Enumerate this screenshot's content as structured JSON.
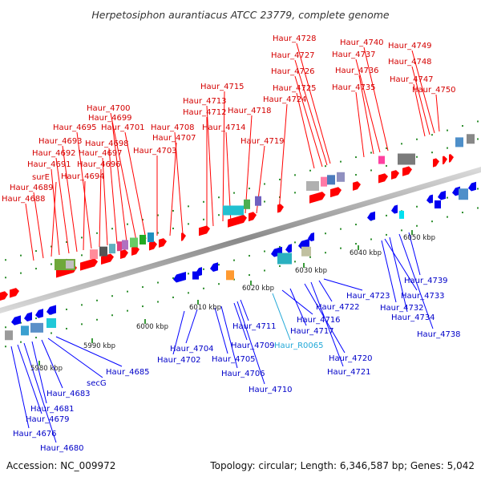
{
  "title": "Herpetosiphon aurantiacus ATCC 23779, complete genome",
  "footer": {
    "accession": "Accession: NC_009972",
    "topology": "Topology: circular; Length: 6,346,587 bp; Genes: 5,042"
  },
  "colors": {
    "top_label": "#d40000",
    "bottom_label": "#0000c8",
    "rna_label": "#22a8d8",
    "axis": "#999999"
  },
  "ticks": [
    {
      "text": "5980 kbp"
    },
    {
      "text": "5990 kbp"
    },
    {
      "text": "6000 kbp"
    },
    {
      "text": "6010 kbp"
    },
    {
      "text": "6020 kbp"
    },
    {
      "text": "6030 kbp"
    },
    {
      "text": "6040 kbp"
    },
    {
      "text": "6050 kbp"
    }
  ],
  "top_labels": [
    {
      "text": "Haur_4688"
    },
    {
      "text": "Haur_4689"
    },
    {
      "text": "surE"
    },
    {
      "text": "Haur_4691"
    },
    {
      "text": "Haur_4692"
    },
    {
      "text": "Haur_4693"
    },
    {
      "text": "Haur_4694"
    },
    {
      "text": "Haur_4695"
    },
    {
      "text": "Haur_4696"
    },
    {
      "text": "Haur_4697"
    },
    {
      "text": "Haur_4698"
    },
    {
      "text": "Haur_4699"
    },
    {
      "text": "Haur_4700"
    },
    {
      "text": "Haur_4701"
    },
    {
      "text": "Haur_4703"
    },
    {
      "text": "Haur_4707"
    },
    {
      "text": "Haur_4708"
    },
    {
      "text": "Haur_4712"
    },
    {
      "text": "Haur_4713"
    },
    {
      "text": "Haur_4714"
    },
    {
      "text": "Haur_4715"
    },
    {
      "text": "Haur_4718"
    },
    {
      "text": "Haur_4719"
    },
    {
      "text": "Haur_4724"
    },
    {
      "text": "Haur_4725"
    },
    {
      "text": "Haur_4726"
    },
    {
      "text": "Haur_4727"
    },
    {
      "text": "Haur_4728"
    },
    {
      "text": "Haur_4735"
    },
    {
      "text": "Haur_4736"
    },
    {
      "text": "Haur_4737"
    },
    {
      "text": "Haur_4740"
    },
    {
      "text": "Haur_4747"
    },
    {
      "text": "Haur_4748"
    },
    {
      "text": "Haur_4749"
    },
    {
      "text": "Haur_4750"
    }
  ],
  "bottom_labels": [
    {
      "text": "Haur_4676"
    },
    {
      "text": "Haur_4679"
    },
    {
      "text": "Haur_4680"
    },
    {
      "text": "Haur_4681"
    },
    {
      "text": "Haur_4683"
    },
    {
      "text": "secG"
    },
    {
      "text": "Haur_4685"
    },
    {
      "text": "Haur_4702"
    },
    {
      "text": "Haur_4704"
    },
    {
      "text": "Haur_4705"
    },
    {
      "text": "Haur_4706"
    },
    {
      "text": "Haur_4709"
    },
    {
      "text": "Haur_4710"
    },
    {
      "text": "Haur_4711"
    },
    {
      "text": "Haur_R0065"
    },
    {
      "text": "Haur_4716"
    },
    {
      "text": "Haur_4717"
    },
    {
      "text": "Haur_4720"
    },
    {
      "text": "Haur_4721"
    },
    {
      "text": "Haur_4722"
    },
    {
      "text": "Haur_4723"
    },
    {
      "text": "Haur_4732"
    },
    {
      "text": "Haur_4733"
    },
    {
      "text": "Haur_4734"
    },
    {
      "text": "Haur_4738"
    },
    {
      "text": "Haur_4739"
    }
  ]
}
